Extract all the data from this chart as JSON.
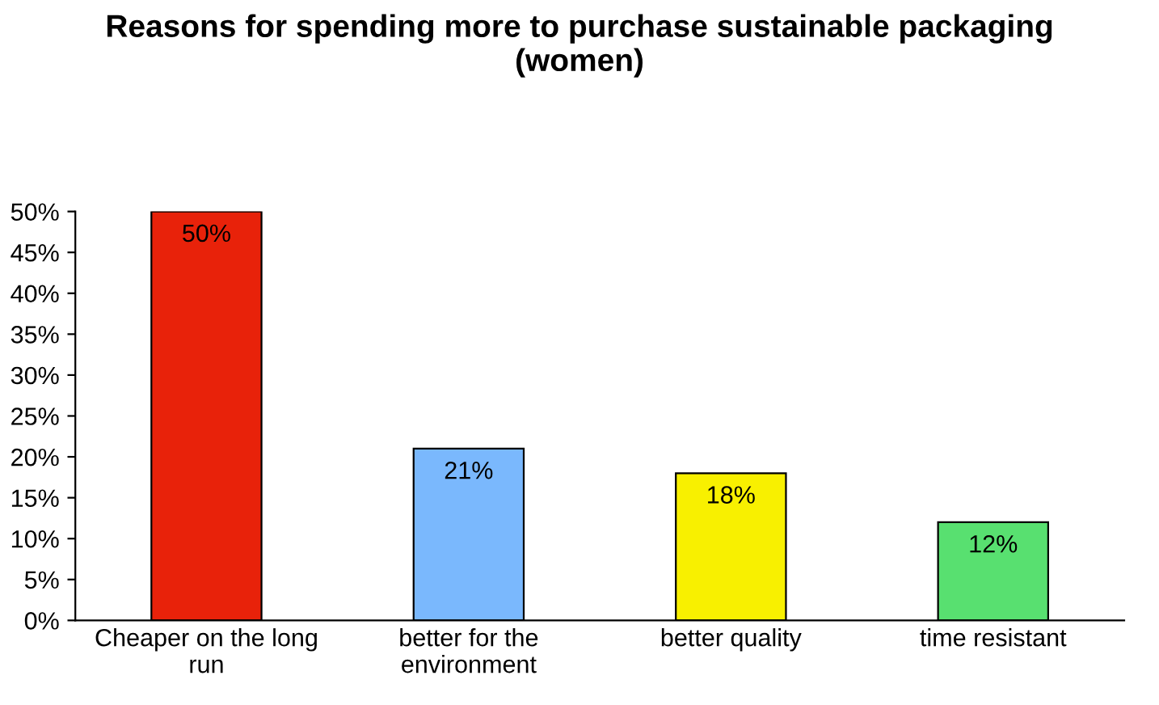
{
  "chart_data": {
    "type": "bar",
    "title": "Reasons for spending more to purchase sustainable packaging\n(women)",
    "categories": [
      "Cheaper on the long\nrun",
      "better for the\nenvironment",
      "better quality",
      "time resistant"
    ],
    "values": [
      50,
      21,
      18,
      12
    ],
    "colors": [
      "#e8220a",
      "#7ab8fd",
      "#f8f000",
      "#58e070"
    ],
    "value_labels": [
      "50%",
      "21%",
      "18%",
      "12%"
    ],
    "ylim": [
      0,
      50
    ],
    "yticks": [
      {
        "value": 0,
        "label": "0%"
      },
      {
        "value": 5,
        "label": "5%"
      },
      {
        "value": 10,
        "label": "10%"
      },
      {
        "value": 15,
        "label": "15%"
      },
      {
        "value": 20,
        "label": "20%"
      },
      {
        "value": 25,
        "label": "25%"
      },
      {
        "value": 30,
        "label": "30%"
      },
      {
        "value": 35,
        "label": "35%"
      },
      {
        "value": 40,
        "label": "40%"
      },
      {
        "value": 45,
        "label": "45%"
      },
      {
        "value": 50,
        "label": "50%"
      }
    ],
    "grid": false
  }
}
